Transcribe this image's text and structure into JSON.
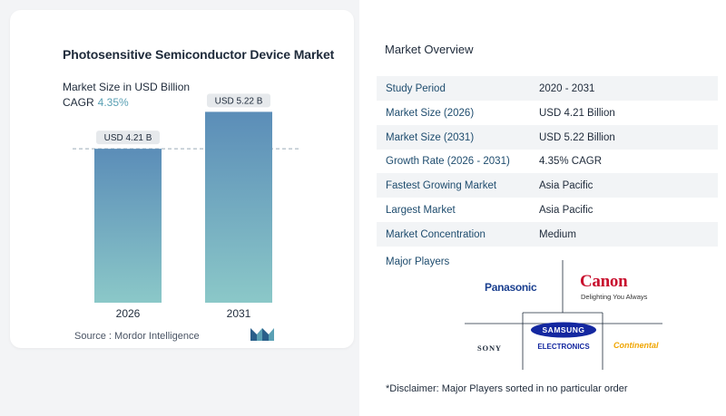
{
  "left": {
    "title": "Photosensitive Semiconductor Device Market",
    "subtitle": "Market Size in USD Billion",
    "cagr_label": "CAGR",
    "cagr_value": "4.35%",
    "source": "Source :  Mordor Intelligence"
  },
  "chart_data": {
    "type": "bar",
    "categories": [
      "2026",
      "2031"
    ],
    "values": [
      4.21,
      5.22
    ],
    "data_labels": [
      "USD 4.21 B",
      "USD 5.22 B"
    ],
    "ylim": [
      0,
      5.8
    ],
    "reference_line_value": 4.21,
    "bar_gradient": [
      "#5b8db8",
      "#8bc8c8"
    ],
    "grid": false
  },
  "right": {
    "section_title": "Market Overview",
    "rows": [
      {
        "label": "Study Period",
        "value": "2020 - 2031"
      },
      {
        "label": "Market Size (2026)",
        "value": "USD 4.21 Billion"
      },
      {
        "label": "Market Size (2031)",
        "value": "USD 5.22 Billion"
      },
      {
        "label": "Growth Rate (2026 - 2031)",
        "value": "4.35% CAGR"
      },
      {
        "label": "Fastest Growing Market",
        "value": "Asia Pacific"
      },
      {
        "label": "Largest Market",
        "value": "Asia Pacific"
      },
      {
        "label": "Market Concentration",
        "value": "Medium"
      }
    ],
    "players_title": "Major Players",
    "players": {
      "panasonic": "Panasonic",
      "canon": "Canon",
      "canon_tagline": "Delighting You Always",
      "samsung": "SAMSUNG",
      "samsung_sub": "ELECTRONICS",
      "sony": "SONY",
      "continental": "Continental"
    },
    "disclaimer": "*Disclaimer: Major Players sorted in no particular order"
  },
  "colors": {
    "accent": "#5aa0b4",
    "label_blue": "#1e4c6e",
    "panasonic": "#1a3f8f",
    "canon": "#c8102e",
    "samsung": "#1428a0",
    "continental": "#f0a500"
  }
}
